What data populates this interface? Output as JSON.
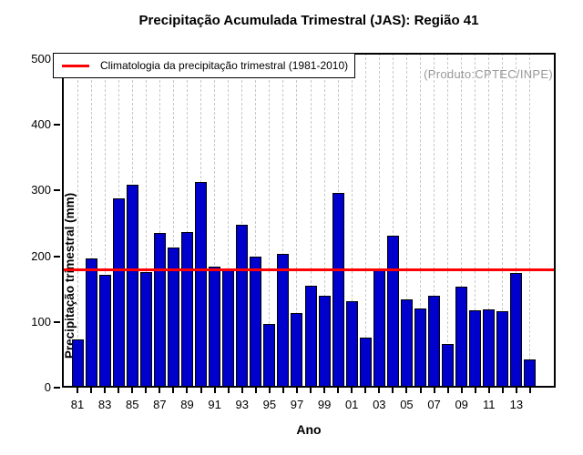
{
  "title": "Precipitação Acumulada Trimestral (JAS): Região 41",
  "watermark": "(Produto:CPTEC/INPE)",
  "legend": {
    "label": "Climatologia da precipitação trimestral (1981-2010)"
  },
  "axes": {
    "x_label": "Ano",
    "y_label": "Precipitação trimestral (mm)"
  },
  "colors": {
    "bar_fill": "#0000CD",
    "bar_border": "#000000",
    "climatology_line": "#FF0000",
    "gridline": "#C8C8C8",
    "watermark_text": "#999999",
    "axis_text": "#000000"
  },
  "chart_data": {
    "type": "bar",
    "title": "Precipitação Acumulada Trimestral (JAS): Região 41",
    "xlabel": "Ano",
    "ylabel": "Precipitação trimestral (mm)",
    "ylim": [
      0,
      500
    ],
    "y_ticks": [
      0,
      100,
      200,
      300,
      400,
      500
    ],
    "grid": "vertical dashed line at every year",
    "legend_position": "top-left",
    "legend_entry": "Climatologia da precipitação trimestral (1981-2010)",
    "annotation": "(Produto:CPTEC/INPE)",
    "climatology_value": 180,
    "years": [
      1981,
      1982,
      1983,
      1984,
      1985,
      1986,
      1987,
      1988,
      1989,
      1990,
      1991,
      1992,
      1993,
      1994,
      1995,
      1996,
      1997,
      1998,
      1999,
      2000,
      2001,
      2002,
      2003,
      2004,
      2005,
      2006,
      2007,
      2008,
      2009,
      2010,
      2011,
      2012,
      2013,
      2014
    ],
    "x_tick_labels": [
      "81",
      "83",
      "85",
      "87",
      "89",
      "91",
      "93",
      "95",
      "97",
      "99",
      "01",
      "03",
      "05",
      "07",
      "09",
      "11",
      "13"
    ],
    "values": [
      73,
      197,
      172,
      288,
      309,
      176,
      236,
      214,
      237,
      313,
      184,
      181,
      248,
      199,
      97,
      204,
      114,
      155,
      140,
      296,
      131,
      76,
      178,
      231,
      134,
      120,
      140,
      66,
      154,
      118,
      119,
      116,
      175,
      43
    ]
  }
}
